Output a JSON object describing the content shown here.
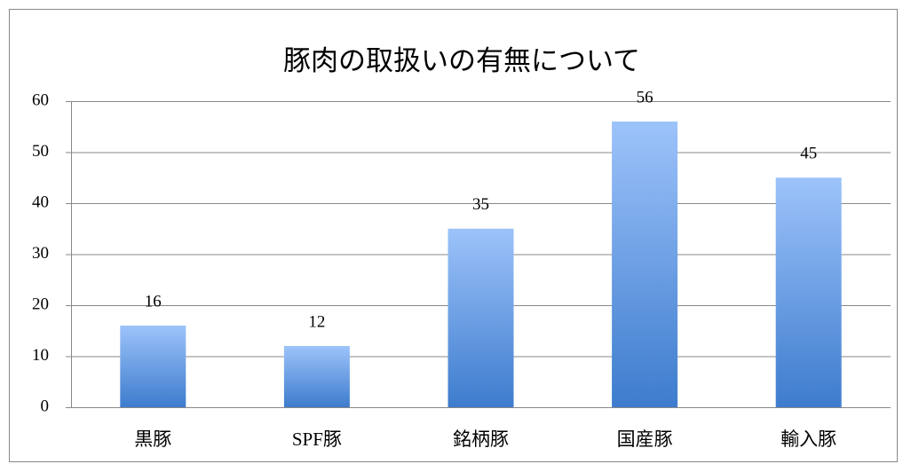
{
  "chart_data": {
    "type": "bar",
    "title": "豚肉の取扱いの有無について",
    "categories": [
      "黒豚",
      "SPF豚",
      "銘柄豚",
      "国産豚",
      "輸入豚"
    ],
    "values": [
      16,
      12,
      35,
      56,
      45
    ],
    "colors": [
      "#9dc3fa",
      "#3d7ccd"
    ],
    "ylim": [
      0,
      60
    ],
    "yticks": [
      0,
      10,
      20,
      30,
      40,
      50,
      60
    ],
    "grid": true
  }
}
